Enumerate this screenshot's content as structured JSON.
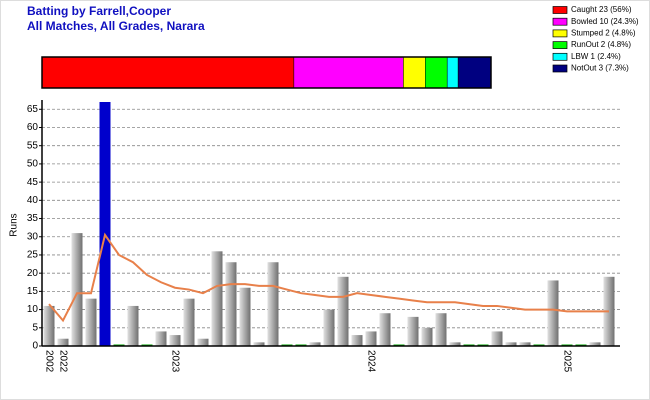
{
  "chart_data": {
    "type": "bar",
    "title": "Batting by Farrell,Cooper",
    "subtitle": "All Matches, All Grades, Narara",
    "y_label": "Runs",
    "categories": [
      "2002",
      "2022",
      null,
      null,
      null,
      null,
      null,
      null,
      null,
      "2023",
      null,
      null,
      null,
      null,
      null,
      null,
      null,
      null,
      null,
      null,
      null,
      null,
      null,
      "2024",
      null,
      null,
      null,
      null,
      null,
      null,
      null,
      null,
      null,
      null,
      null,
      null,
      null,
      "2025",
      null,
      null,
      null
    ],
    "values": [
      11,
      2,
      31,
      13,
      67,
      0,
      11,
      0,
      4,
      3,
      13,
      2,
      26,
      23,
      16,
      1,
      23,
      0,
      0,
      1,
      10,
      19,
      3,
      4,
      9,
      0,
      8,
      5,
      9,
      1,
      0,
      0,
      4,
      1,
      1,
      0,
      18,
      0,
      0,
      1,
      19
    ],
    "color": "#909090",
    "highlight_color": "#0000cc",
    "zero_color": "#00a000",
    "average_line": {
      "color": "#e8804a",
      "values": [
        11.5,
        7,
        14.5,
        14.5,
        30.5,
        25,
        23,
        19.5,
        17.5,
        16,
        15.5,
        14.5,
        16.5,
        17,
        17,
        16.5,
        16.5,
        15.5,
        14.5,
        14,
        13.5,
        13.5,
        14.5,
        14,
        13.5,
        13,
        12.5,
        12,
        12,
        12,
        11.5,
        11,
        11,
        10.5,
        10,
        10,
        10,
        9.5,
        9.5,
        9.5,
        9.5
      ]
    },
    "ylim": [
      0,
      67
    ],
    "yticks": [
      0,
      5,
      10,
      15,
      20,
      25,
      30,
      35,
      40,
      45,
      50,
      55,
      60,
      65
    ],
    "grid": true,
    "dismissals": {
      "labels": [
        "Caught 23 (56%)",
        "Bowled 10 (24.3%)",
        "Stumped 2 (4.8%)",
        "RunOut 2 (4.8%)",
        "LBW 1 (2.4%)",
        "NotOut 3 (7.3%)"
      ],
      "values": [
        23,
        10,
        2,
        2,
        1,
        3
      ],
      "colors": [
        "#ff0000",
        "#ff00ff",
        "#ffff00",
        "#00ff00",
        "#00ffff",
        "#000080"
      ]
    }
  }
}
